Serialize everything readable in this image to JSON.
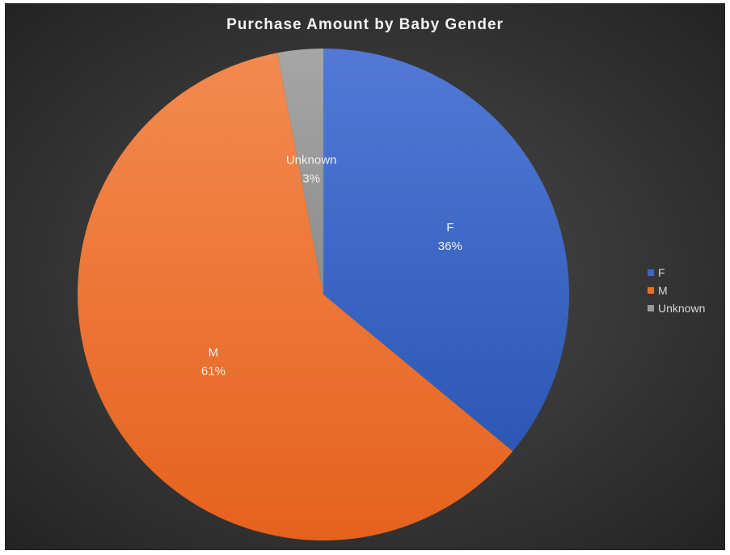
{
  "chart_data": {
    "type": "pie",
    "title": "Purchase Amount by Baby Gender",
    "categories": [
      "F",
      "M",
      "Unknown"
    ],
    "values": [
      36,
      61,
      3
    ],
    "labels": [
      "36%",
      "61%",
      "3%"
    ],
    "colors": [
      "#3f68c5",
      "#ee6d25",
      "#9a9a9a"
    ],
    "legend_position": "right"
  }
}
